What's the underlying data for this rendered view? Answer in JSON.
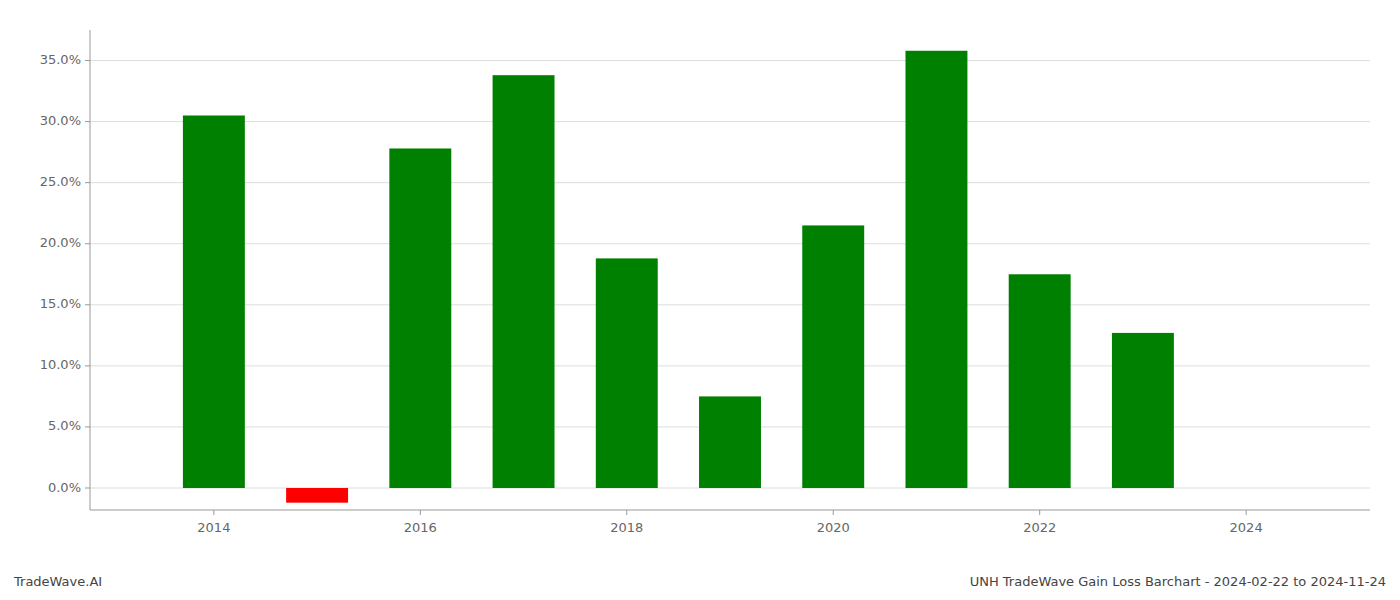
{
  "chart_data": {
    "type": "bar",
    "title": "UNH TradeWave Gain Loss Barchart - 2024-02-22 to 2024-11-24",
    "annotations": [
      "TradeWave.AI"
    ],
    "x": [
      2014,
      2015,
      2016,
      2017,
      2018,
      2019,
      2020,
      2021,
      2022,
      2023
    ],
    "values": [
      0.305,
      -0.012,
      0.278,
      0.338,
      0.188,
      0.075,
      0.215,
      0.358,
      0.175,
      0.127
    ],
    "colors": [
      "#008000",
      "#ff0000",
      "#008000",
      "#008000",
      "#008000",
      "#008000",
      "#008000",
      "#008000",
      "#008000",
      "#008000"
    ],
    "xlim": [
      2012.8,
      2025.2
    ],
    "xticks": [
      2014,
      2016,
      2018,
      2020,
      2022,
      2024
    ],
    "ylim": [
      -0.018,
      0.375
    ],
    "yticks": [
      {
        "value": 0,
        "label": "0.0%"
      },
      {
        "value": 0.05,
        "label": "5.0%"
      },
      {
        "value": 0.1,
        "label": "10.0%"
      },
      {
        "value": 0.15,
        "label": "15.0%"
      },
      {
        "value": 0.2,
        "label": "20.0%"
      },
      {
        "value": 0.25,
        "label": "25.0%"
      },
      {
        "value": 0.3,
        "label": "30.0%"
      },
      {
        "value": 0.35,
        "label": "35.0%"
      }
    ],
    "grid": true
  }
}
